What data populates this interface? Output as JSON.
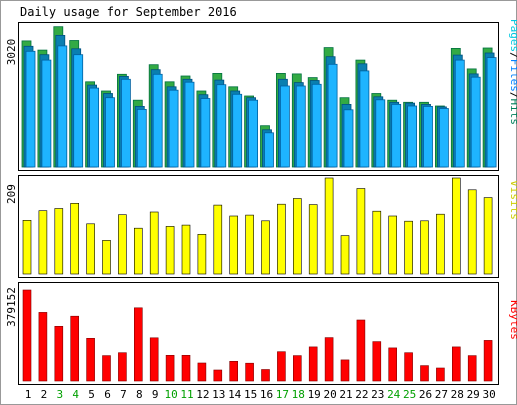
{
  "title": "Daily usage for September 2016",
  "colors": {
    "hits": "#00805c",
    "hits_fill": "#33aa44",
    "files": "#0080ff",
    "files_fill": "#1eb4ff",
    "pages": "#00c8e0",
    "visits_fill": "#ffff00",
    "kbytes_fill": "#ff0000",
    "weekend_label": "#00a000",
    "weekday_label": "#000000"
  },
  "chart_data": [
    {
      "type": "bar",
      "panel": "top",
      "ytick_label": "3020",
      "ymax": 3400,
      "legend": {
        "pages": "Pages",
        "files": "Files",
        "hits": "Hits",
        "sep": "/"
      },
      "categories": [
        "1",
        "2",
        "3",
        "4",
        "5",
        "6",
        "7",
        "8",
        "9",
        "10",
        "11",
        "12",
        "13",
        "14",
        "15",
        "16",
        "17",
        "18",
        "19",
        "20",
        "21",
        "22",
        "23",
        "24",
        "25",
        "26",
        "27",
        "28",
        "29",
        "30"
      ],
      "weekend": [
        "3",
        "4",
        "10",
        "11",
        "17",
        "18",
        "24",
        "25"
      ],
      "series": [
        {
          "name": "Hits",
          "values": [
            3020,
            2800,
            3360,
            3030,
            2040,
            1820,
            2220,
            1600,
            2450,
            2040,
            2180,
            1820,
            2240,
            1920,
            1700,
            990,
            2240,
            2230,
            2140,
            2860,
            1660,
            2560,
            1760,
            1600,
            1550,
            1550,
            1460,
            2840,
            2350,
            2850
          ]
        },
        {
          "name": "Files",
          "values": [
            2890,
            2690,
            3150,
            2830,
            1960,
            1760,
            2170,
            1450,
            2330,
            1920,
            2100,
            1730,
            2080,
            1820,
            1660,
            890,
            2100,
            2020,
            2070,
            2640,
            1500,
            2470,
            1680,
            1550,
            1530,
            1500,
            1440,
            2680,
            2230,
            2730
          ]
        },
        {
          "name": "Pages",
          "values": [
            2770,
            2560,
            2900,
            2690,
            1890,
            1660,
            2100,
            1380,
            2220,
            1840,
            2030,
            1640,
            1970,
            1740,
            1600,
            820,
            1940,
            1940,
            1980,
            2460,
            1370,
            2300,
            1610,
            1500,
            1460,
            1450,
            1400,
            2560,
            2150,
            2620
          ]
        }
      ]
    },
    {
      "type": "bar",
      "panel": "middle",
      "ytick_label": "209",
      "ymax": 220,
      "legend": {
        "visits": "Visits"
      },
      "series": [
        {
          "name": "Visits",
          "values": [
            123,
            145,
            150,
            162,
            115,
            77,
            136,
            105,
            142,
            109,
            112,
            91,
            158,
            133,
            135,
            122,
            160,
            173,
            159,
            220,
            88,
            196,
            144,
            133,
            121,
            122,
            137,
            220,
            193,
            175
          ]
        }
      ]
    },
    {
      "type": "bar",
      "panel": "bottom",
      "ytick_label": "379152",
      "ymax": 400000,
      "legend": {
        "kbytes": "KBytes"
      },
      "series": [
        {
          "name": "KBytes",
          "values": [
            379152,
            286000,
            228000,
            270000,
            178000,
            106000,
            118000,
            305000,
            180000,
            107000,
            107000,
            75000,
            46000,
            82000,
            74000,
            48000,
            122000,
            106000,
            142000,
            181000,
            88000,
            254000,
            164000,
            138000,
            118000,
            64000,
            54000,
            142000,
            106000,
            169000
          ]
        }
      ]
    }
  ]
}
